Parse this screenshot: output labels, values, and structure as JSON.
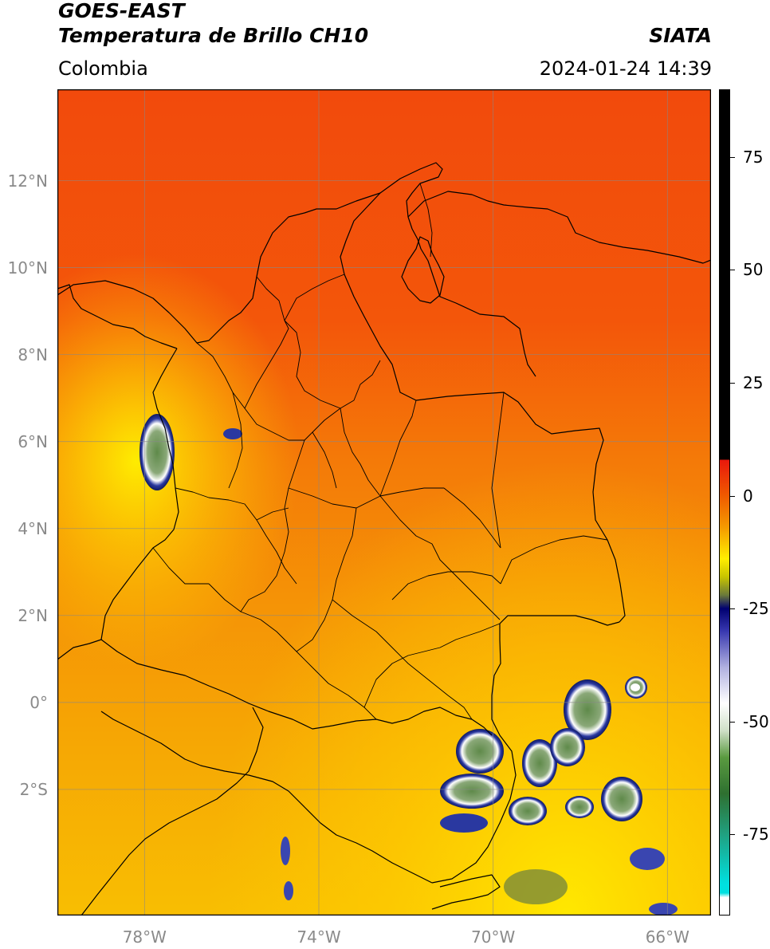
{
  "header": {
    "title_line1": "GOES-EAST",
    "title_line2": "Temperatura de Brillo CH10",
    "brand": "SIATA",
    "region": "Colombia",
    "timestamp": "2024-01-24 14:39"
  },
  "map": {
    "lat_range": [
      -4.9,
      14.1
    ],
    "lon_range": [
      -80.0,
      -65.0
    ],
    "lat_ticks": [
      {
        "value": 12,
        "label": "12°N"
      },
      {
        "value": 10,
        "label": "10°N"
      },
      {
        "value": 8,
        "label": "8°N"
      },
      {
        "value": 6,
        "label": "6°N"
      },
      {
        "value": 4,
        "label": "4°N"
      },
      {
        "value": 2,
        "label": "2°N"
      },
      {
        "value": 0,
        "label": "0°"
      },
      {
        "value": -2,
        "label": "2°S"
      }
    ],
    "lon_ticks": [
      {
        "value": -78,
        "label": "78°W"
      },
      {
        "value": -74,
        "label": "74°W"
      },
      {
        "value": -70,
        "label": "70°W"
      },
      {
        "value": -66,
        "label": "66°W"
      }
    ],
    "gridlines": true
  },
  "colorbar": {
    "range": [
      -93,
      90
    ],
    "ticks": [
      {
        "value": 75,
        "label": "75"
      },
      {
        "value": 50,
        "label": "50"
      },
      {
        "value": 25,
        "label": "25"
      },
      {
        "value": 0,
        "label": "0"
      },
      {
        "value": -25,
        "label": "-25"
      },
      {
        "value": -50,
        "label": "-50"
      },
      {
        "value": -75,
        "label": "-75"
      }
    ],
    "stops": [
      {
        "value": 90,
        "color": "#000000"
      },
      {
        "value": 8,
        "color": "#000000"
      },
      {
        "value": 7.9,
        "color": "#e8180c"
      },
      {
        "value": 0,
        "color": "#f05a00"
      },
      {
        "value": -7,
        "color": "#f49a00"
      },
      {
        "value": -14,
        "color": "#ffee00"
      },
      {
        "value": -18,
        "color": "#c8c400"
      },
      {
        "value": -22,
        "color": "#6b7a3a"
      },
      {
        "value": -25,
        "color": "#000070"
      },
      {
        "value": -30,
        "color": "#3838b0"
      },
      {
        "value": -38,
        "color": "#b0b0e0"
      },
      {
        "value": -46,
        "color": "#ffffff"
      },
      {
        "value": -52,
        "color": "#d0e0c8"
      },
      {
        "value": -58,
        "color": "#5a9a40"
      },
      {
        "value": -66,
        "color": "#2e7030"
      },
      {
        "value": -75,
        "color": "#20a080"
      },
      {
        "value": -86,
        "color": "#00e0e0"
      },
      {
        "value": -88,
        "color": "#00e0e0"
      },
      {
        "value": -89,
        "color": "#ffffff"
      },
      {
        "value": -93,
        "color": "#ffffff"
      }
    ]
  },
  "colors": {
    "warm_north": "#f2490c",
    "mid": "#f48a08",
    "south": "#f8b800",
    "cloud_dark": "#1c2a88",
    "cloud_core": "#5f8a4a"
  }
}
